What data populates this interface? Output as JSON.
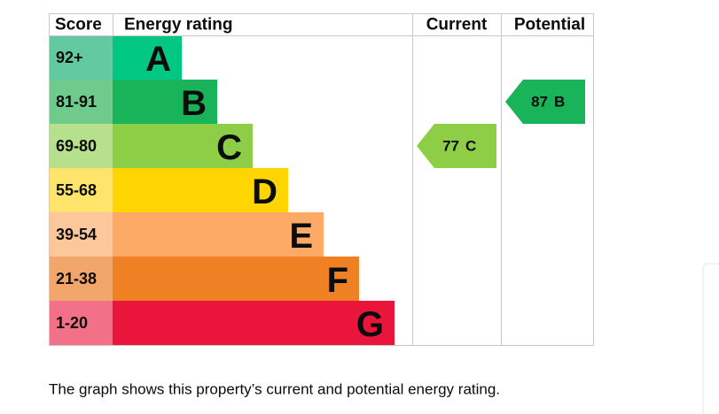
{
  "header": {
    "score": "Score",
    "rating": "Energy rating",
    "current": "Current",
    "potential": "Potential"
  },
  "bands": [
    {
      "score": "92+",
      "letter": "A",
      "color": "#00c781",
      "score_color": "#63c9a0"
    },
    {
      "score": "81-91",
      "letter": "B",
      "color": "#19b459",
      "score_color": "#6fcb8c"
    },
    {
      "score": "69-80",
      "letter": "C",
      "color": "#8dce46",
      "score_color": "#b6e08c"
    },
    {
      "score": "55-68",
      "letter": "D",
      "color": "#ffd500",
      "score_color": "#ffe46c"
    },
    {
      "score": "39-54",
      "letter": "E",
      "color": "#fcaa65",
      "score_color": "#fdc79c"
    },
    {
      "score": "21-38",
      "letter": "F",
      "color": "#ef8023",
      "score_color": "#f3a66b"
    },
    {
      "score": "1-20",
      "letter": "G",
      "color": "#e9153b",
      "score_color": "#f27088"
    }
  ],
  "current": {
    "value": 77,
    "letter": "C"
  },
  "potential": {
    "value": 87,
    "letter": "B"
  },
  "caption": "The graph shows this property’s current and potential energy rating."
}
